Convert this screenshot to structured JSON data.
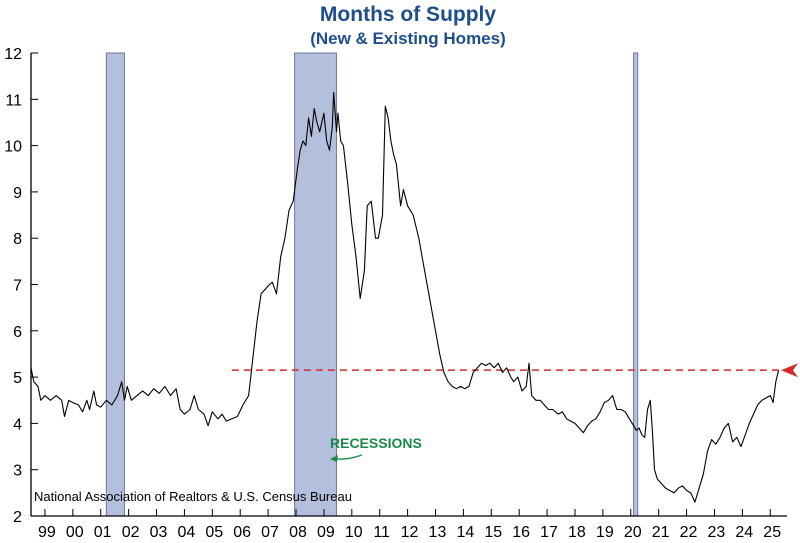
{
  "chart_data": {
    "type": "line",
    "title": "Months of Supply",
    "subtitle": "(New & Existing Homes)",
    "source": "National Association of Realtors & U.S. Census Bureau",
    "xlabel": "",
    "ylabel": "",
    "xlim": [
      1998.5,
      2025.6
    ],
    "ylim": [
      2,
      12
    ],
    "y_ticks": [
      2,
      3,
      4,
      5,
      6,
      7,
      8,
      9,
      10,
      11,
      12
    ],
    "x_tick_labels": [
      "99",
      "00",
      "01",
      "02",
      "03",
      "04",
      "05",
      "06",
      "07",
      "08",
      "09",
      "10",
      "11",
      "12",
      "13",
      "14",
      "15",
      "16",
      "17",
      "18",
      "19",
      "20",
      "21",
      "22",
      "23",
      "24",
      "25"
    ],
    "recession_label": "RECESSIONS",
    "recessions": [
      [
        2001.2,
        2001.85
      ],
      [
        2007.95,
        2009.45
      ],
      [
        2020.1,
        2020.25
      ]
    ],
    "current_value": 5.15,
    "reference_line": {
      "value": 5.15,
      "x_start": 2005.7,
      "x_end": 2025.3
    },
    "colors": {
      "title": "#1f4e8c",
      "line": "#000000",
      "recession": "#b3bfdc",
      "recession_border": "#6b7a9c",
      "reference": "#d42a2a",
      "recession_label": "#1a8a4a",
      "arrow": "#d42a2a"
    },
    "series": [
      {
        "name": "Months of Supply",
        "points": [
          [
            1998.5,
            5.2
          ],
          [
            1998.6,
            4.9
          ],
          [
            1998.75,
            4.8
          ],
          [
            1998.85,
            4.5
          ],
          [
            1999.0,
            4.6
          ],
          [
            1999.2,
            4.5
          ],
          [
            1999.4,
            4.6
          ],
          [
            1999.6,
            4.5
          ],
          [
            1999.7,
            4.15
          ],
          [
            1999.85,
            4.5
          ],
          [
            2000.0,
            4.45
          ],
          [
            2000.2,
            4.4
          ],
          [
            2000.35,
            4.25
          ],
          [
            2000.5,
            4.5
          ],
          [
            2000.6,
            4.3
          ],
          [
            2000.75,
            4.7
          ],
          [
            2000.85,
            4.4
          ],
          [
            2001.0,
            4.35
          ],
          [
            2001.2,
            4.5
          ],
          [
            2001.4,
            4.4
          ],
          [
            2001.6,
            4.6
          ],
          [
            2001.75,
            4.9
          ],
          [
            2001.85,
            4.5
          ],
          [
            2001.95,
            4.8
          ],
          [
            2002.1,
            4.5
          ],
          [
            2002.3,
            4.6
          ],
          [
            2002.5,
            4.7
          ],
          [
            2002.7,
            4.6
          ],
          [
            2002.9,
            4.75
          ],
          [
            2003.1,
            4.65
          ],
          [
            2003.3,
            4.8
          ],
          [
            2003.5,
            4.6
          ],
          [
            2003.7,
            4.75
          ],
          [
            2003.85,
            4.3
          ],
          [
            2004.0,
            4.2
          ],
          [
            2004.2,
            4.3
          ],
          [
            2004.35,
            4.6
          ],
          [
            2004.5,
            4.3
          ],
          [
            2004.7,
            4.2
          ],
          [
            2004.85,
            3.95
          ],
          [
            2005.0,
            4.25
          ],
          [
            2005.2,
            4.1
          ],
          [
            2005.35,
            4.2
          ],
          [
            2005.5,
            4.05
          ],
          [
            2005.7,
            4.1
          ],
          [
            2005.9,
            4.15
          ],
          [
            2006.1,
            4.4
          ],
          [
            2006.3,
            4.6
          ],
          [
            2006.45,
            5.4
          ],
          [
            2006.6,
            6.2
          ],
          [
            2006.75,
            6.8
          ],
          [
            2006.9,
            6.9
          ],
          [
            2007.05,
            7.0
          ],
          [
            2007.15,
            7.05
          ],
          [
            2007.3,
            6.8
          ],
          [
            2007.45,
            7.6
          ],
          [
            2007.6,
            8.0
          ],
          [
            2007.75,
            8.6
          ],
          [
            2007.9,
            8.8
          ],
          [
            2008.05,
            9.5
          ],
          [
            2008.15,
            9.9
          ],
          [
            2008.25,
            10.1
          ],
          [
            2008.35,
            10.0
          ],
          [
            2008.45,
            10.6
          ],
          [
            2008.55,
            10.2
          ],
          [
            2008.65,
            10.8
          ],
          [
            2008.75,
            10.5
          ],
          [
            2008.85,
            10.3
          ],
          [
            2009.0,
            10.7
          ],
          [
            2009.1,
            10.1
          ],
          [
            2009.2,
            9.9
          ],
          [
            2009.3,
            10.4
          ],
          [
            2009.35,
            11.15
          ],
          [
            2009.45,
            10.3
          ],
          [
            2009.5,
            10.7
          ],
          [
            2009.6,
            10.1
          ],
          [
            2009.7,
            10.0
          ],
          [
            2009.85,
            9.2
          ],
          [
            2010.0,
            8.3
          ],
          [
            2010.15,
            7.6
          ],
          [
            2010.3,
            6.7
          ],
          [
            2010.45,
            7.3
          ],
          [
            2010.55,
            8.7
          ],
          [
            2010.7,
            8.8
          ],
          [
            2010.85,
            8.0
          ],
          [
            2010.95,
            8.0
          ],
          [
            2011.1,
            8.5
          ],
          [
            2011.2,
            10.85
          ],
          [
            2011.3,
            10.6
          ],
          [
            2011.4,
            10.1
          ],
          [
            2011.5,
            9.8
          ],
          [
            2011.6,
            9.6
          ],
          [
            2011.75,
            8.7
          ],
          [
            2011.85,
            9.05
          ],
          [
            2012.0,
            8.7
          ],
          [
            2012.2,
            8.5
          ],
          [
            2012.4,
            8.0
          ],
          [
            2012.55,
            7.5
          ],
          [
            2012.7,
            7.0
          ],
          [
            2012.85,
            6.5
          ],
          [
            2013.0,
            6.0
          ],
          [
            2013.15,
            5.5
          ],
          [
            2013.3,
            5.1
          ],
          [
            2013.45,
            4.9
          ],
          [
            2013.6,
            4.8
          ],
          [
            2013.75,
            4.75
          ],
          [
            2013.9,
            4.8
          ],
          [
            2014.05,
            4.75
          ],
          [
            2014.2,
            4.8
          ],
          [
            2014.35,
            5.1
          ],
          [
            2014.5,
            5.2
          ],
          [
            2014.65,
            5.3
          ],
          [
            2014.8,
            5.25
          ],
          [
            2014.95,
            5.3
          ],
          [
            2015.1,
            5.2
          ],
          [
            2015.25,
            5.3
          ],
          [
            2015.4,
            5.1
          ],
          [
            2015.55,
            5.2
          ],
          [
            2015.7,
            5.0
          ],
          [
            2015.8,
            4.9
          ],
          [
            2015.95,
            5.0
          ],
          [
            2016.1,
            4.7
          ],
          [
            2016.25,
            4.8
          ],
          [
            2016.35,
            5.3
          ],
          [
            2016.45,
            4.6
          ],
          [
            2016.6,
            4.5
          ],
          [
            2016.75,
            4.5
          ],
          [
            2016.9,
            4.4
          ],
          [
            2017.05,
            4.3
          ],
          [
            2017.2,
            4.3
          ],
          [
            2017.4,
            4.2
          ],
          [
            2017.55,
            4.25
          ],
          [
            2017.7,
            4.1
          ],
          [
            2017.85,
            4.05
          ],
          [
            2018.0,
            4.0
          ],
          [
            2018.15,
            3.9
          ],
          [
            2018.3,
            3.8
          ],
          [
            2018.45,
            3.95
          ],
          [
            2018.6,
            4.05
          ],
          [
            2018.75,
            4.1
          ],
          [
            2018.9,
            4.25
          ],
          [
            2019.05,
            4.45
          ],
          [
            2019.2,
            4.5
          ],
          [
            2019.35,
            4.6
          ],
          [
            2019.5,
            4.3
          ],
          [
            2019.65,
            4.3
          ],
          [
            2019.8,
            4.25
          ],
          [
            2019.95,
            4.1
          ],
          [
            2020.1,
            3.95
          ],
          [
            2020.2,
            3.85
          ],
          [
            2020.3,
            3.9
          ],
          [
            2020.4,
            3.75
          ],
          [
            2020.5,
            3.7
          ],
          [
            2020.6,
            4.3
          ],
          [
            2020.7,
            4.5
          ],
          [
            2020.78,
            3.8
          ],
          [
            2020.85,
            3.0
          ],
          [
            2020.95,
            2.8
          ],
          [
            2021.1,
            2.7
          ],
          [
            2021.25,
            2.6
          ],
          [
            2021.4,
            2.55
          ],
          [
            2021.55,
            2.5
          ],
          [
            2021.7,
            2.6
          ],
          [
            2021.85,
            2.65
          ],
          [
            2022.0,
            2.55
          ],
          [
            2022.15,
            2.5
          ],
          [
            2022.3,
            2.3
          ],
          [
            2022.45,
            2.6
          ],
          [
            2022.6,
            2.9
          ],
          [
            2022.75,
            3.4
          ],
          [
            2022.9,
            3.65
          ],
          [
            2023.05,
            3.55
          ],
          [
            2023.2,
            3.7
          ],
          [
            2023.35,
            3.9
          ],
          [
            2023.5,
            4.0
          ],
          [
            2023.65,
            3.6
          ],
          [
            2023.8,
            3.7
          ],
          [
            2023.95,
            3.5
          ],
          [
            2024.1,
            3.75
          ],
          [
            2024.25,
            4.0
          ],
          [
            2024.4,
            4.2
          ],
          [
            2024.55,
            4.4
          ],
          [
            2024.7,
            4.5
          ],
          [
            2024.85,
            4.55
          ],
          [
            2025.0,
            4.6
          ],
          [
            2025.1,
            4.45
          ],
          [
            2025.2,
            4.9
          ],
          [
            2025.3,
            5.15
          ]
        ]
      }
    ]
  }
}
